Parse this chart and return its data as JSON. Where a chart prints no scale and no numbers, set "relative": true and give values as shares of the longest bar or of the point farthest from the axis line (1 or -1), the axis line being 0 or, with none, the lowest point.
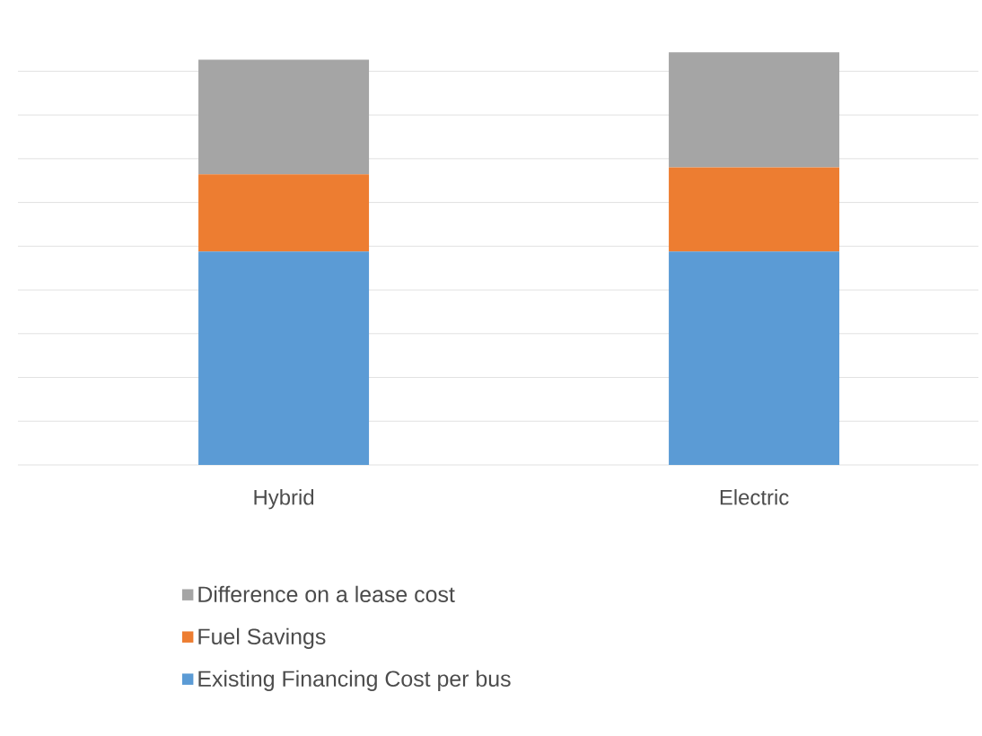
{
  "chart_data": {
    "type": "bar",
    "stacked": true,
    "relative": true,
    "grid": "y",
    "legend": "bottom",
    "categories": [
      "Hybrid",
      "Electric"
    ],
    "series": [
      {
        "name": "Existing Financing Cost per bus",
        "color": "#5b9bd5",
        "values": [
          0.517,
          0.517
        ]
      },
      {
        "name": "Fuel Savings",
        "color": "#ed7d31",
        "values": [
          0.187,
          0.204
        ]
      },
      {
        "name": "Difference on a lease cost",
        "color": "#a5a5a5",
        "values": [
          0.278,
          0.279
        ]
      }
    ]
  }
}
